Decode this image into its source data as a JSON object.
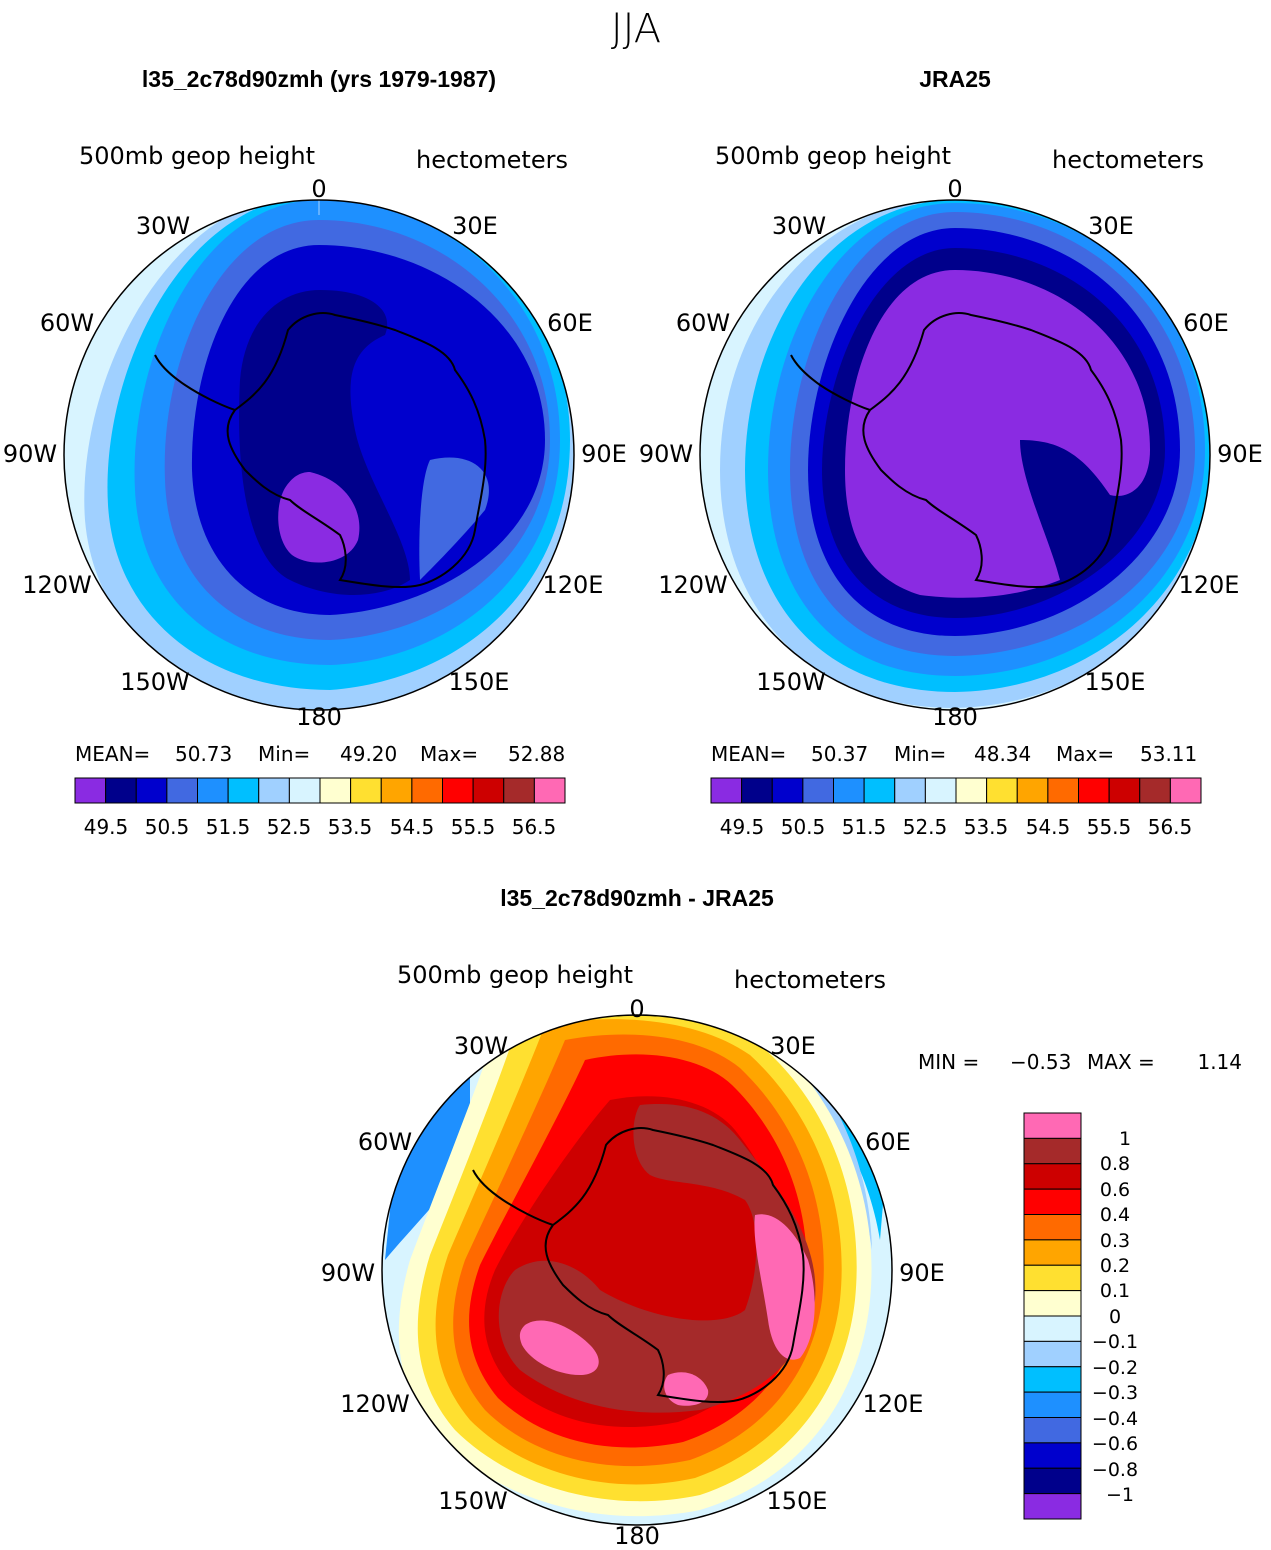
{
  "season": "JJA",
  "panels": [
    {
      "title": "l35_2c78d90zmh (yrs 1979-1987)",
      "field_label": "500mb geop height",
      "units_label": "hectometers",
      "lon_labels": [
        "0",
        "30E",
        "60E",
        "90E",
        "120E",
        "150E",
        "180",
        "150W",
        "120W",
        "90W",
        "60W",
        "30W"
      ],
      "stats": {
        "mean_label": "MEAN=",
        "mean": "50.73",
        "min_label": "Min=",
        "min": "49.20",
        "max_label": "Max=",
        "max": "52.88"
      }
    },
    {
      "title": "JRA25",
      "field_label": "500mb geop height",
      "units_label": "hectometers",
      "lon_labels": [
        "0",
        "30E",
        "60E",
        "90E",
        "120E",
        "150E",
        "180",
        "150W",
        "120W",
        "90W",
        "60W",
        "30W"
      ],
      "stats": {
        "mean_label": "MEAN=",
        "mean": "50.37",
        "min_label": "Min=",
        "min": "48.34",
        "max_label": "Max=",
        "max": "53.11"
      }
    },
    {
      "title": "l35_2c78d90zmh - JRA25",
      "field_label": "500mb geop height",
      "units_label": "hectometers",
      "lon_labels": [
        "0",
        "30E",
        "60E",
        "90E",
        "120E",
        "150E",
        "180",
        "150W",
        "120W",
        "90W",
        "60W",
        "30W"
      ],
      "stats": {
        "min_label": "MIN =",
        "min": "−0.53",
        "max_label": "MAX =",
        "max": "1.14"
      }
    }
  ],
  "colorbar_main": {
    "colors": [
      "#8a2be2",
      "#00008b",
      "#0000cd",
      "#4169e1",
      "#1e90ff",
      "#00bfff",
      "#a0d0ff",
      "#d8f4ff",
      "#ffffd0",
      "#ffe030",
      "#ffa500",
      "#ff6a00",
      "#ff0000",
      "#cd0000",
      "#a52a2a",
      "#ff69b4"
    ],
    "tick_labels": [
      "49.5",
      "50.5",
      "51.5",
      "52.5",
      "53.5",
      "54.5",
      "55.5",
      "56.5"
    ]
  },
  "colorbar_diff": {
    "colors": [
      "#ff69b4",
      "#a52a2a",
      "#cd0000",
      "#ff0000",
      "#ff6a00",
      "#ffa500",
      "#ffe030",
      "#ffffd0",
      "#d8f4ff",
      "#a0d0ff",
      "#00bfff",
      "#1e90ff",
      "#4169e1",
      "#0000cd",
      "#00008b",
      "#8a2be2"
    ],
    "tick_labels": [
      "1",
      "0.8",
      "0.6",
      "0.4",
      "0.3",
      "0.2",
      "0.1",
      "0",
      "−0.1",
      "−0.2",
      "−0.3",
      "−0.4",
      "−0.6",
      "−0.8",
      "−1"
    ]
  }
}
